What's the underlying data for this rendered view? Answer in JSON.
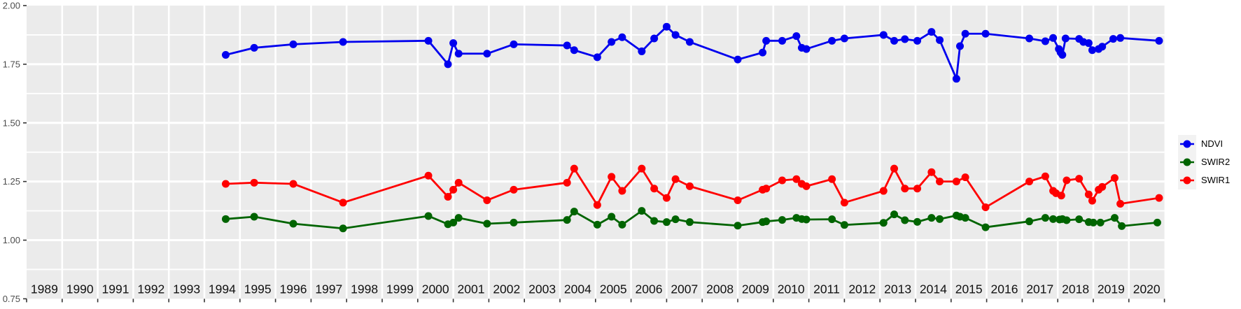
{
  "chart_data": {
    "type": "line",
    "title": "",
    "xlabel": "",
    "ylabel": "",
    "x_axis": {
      "tick_years": [
        1989,
        1990,
        1991,
        1992,
        1993,
        1994,
        1995,
        1996,
        1997,
        1998,
        1999,
        2000,
        2001,
        2002,
        2003,
        2004,
        2005,
        2006,
        2007,
        2008,
        2009,
        2010,
        2011,
        2012,
        2013,
        2014,
        2015,
        2016,
        2017,
        2018,
        2019,
        2020
      ],
      "range": [
        1989,
        2021
      ]
    },
    "y_axis": {
      "tick_labels": [
        "2.00",
        "1.75",
        "1.50",
        "1.25",
        "1.00",
        "0.75"
      ],
      "tick_values": [
        2.0,
        1.75,
        1.5,
        1.25,
        1.0,
        0.75
      ],
      "minor_gridlines": [
        0.875,
        1.125,
        1.375,
        1.625,
        1.875
      ],
      "range": [
        0.75,
        2.0
      ],
      "grid": true
    },
    "legend": {
      "position": "right",
      "entries": [
        {
          "label": "NDVI",
          "color": "#0000EE"
        },
        {
          "label": "SWIR2",
          "color": "#006400"
        },
        {
          "label": "SWIR1",
          "color": "#FF0000"
        }
      ]
    },
    "style": {
      "panel_bg": "#EBEBEB",
      "grid_color": "#FFFFFF",
      "axis_text_color": "#4D4D4D",
      "tick_color": "#333333",
      "year_label_color": "#111111",
      "legend_key_bg": "#F2F2F2",
      "plot_bg": "#FFFFFF"
    },
    "series": [
      {
        "name": "NDVI",
        "color": "#0000EE",
        "points": [
          [
            1994.6,
            1.79
          ],
          [
            1995.4,
            1.82
          ],
          [
            1996.5,
            1.835
          ],
          [
            1997.9,
            1.845
          ],
          [
            2000.3,
            1.85
          ],
          [
            2000.85,
            1.75
          ],
          [
            2001.0,
            1.84
          ],
          [
            2001.15,
            1.795
          ],
          [
            2001.95,
            1.795
          ],
          [
            2002.7,
            1.835
          ],
          [
            2004.2,
            1.83
          ],
          [
            2004.4,
            1.81
          ],
          [
            2005.05,
            1.78
          ],
          [
            2005.45,
            1.845
          ],
          [
            2005.75,
            1.865
          ],
          [
            2006.3,
            1.805
          ],
          [
            2006.65,
            1.86
          ],
          [
            2007.0,
            1.91
          ],
          [
            2007.25,
            1.875
          ],
          [
            2007.65,
            1.845
          ],
          [
            2009.0,
            1.77
          ],
          [
            2009.7,
            1.8
          ],
          [
            2009.8,
            1.85
          ],
          [
            2010.25,
            1.85
          ],
          [
            2010.65,
            1.87
          ],
          [
            2010.8,
            1.82
          ],
          [
            2010.93,
            1.815
          ],
          [
            2011.65,
            1.85
          ],
          [
            2012.0,
            1.86
          ],
          [
            2013.1,
            1.875
          ],
          [
            2013.4,
            1.85
          ],
          [
            2013.7,
            1.857
          ],
          [
            2014.05,
            1.85
          ],
          [
            2014.45,
            1.888
          ],
          [
            2014.68,
            1.853
          ],
          [
            2015.15,
            1.688
          ],
          [
            2015.25,
            1.827
          ],
          [
            2015.4,
            1.88
          ],
          [
            2015.97,
            1.88
          ],
          [
            2017.2,
            1.86
          ],
          [
            2017.65,
            1.848
          ],
          [
            2017.87,
            1.862
          ],
          [
            2018.03,
            1.815
          ],
          [
            2018.08,
            1.8
          ],
          [
            2018.13,
            1.79
          ],
          [
            2018.22,
            1.86
          ],
          [
            2018.6,
            1.858
          ],
          [
            2018.72,
            1.845
          ],
          [
            2018.87,
            1.84
          ],
          [
            2018.97,
            1.81
          ],
          [
            2019.15,
            1.815
          ],
          [
            2019.25,
            1.825
          ],
          [
            2019.56,
            1.858
          ],
          [
            2019.76,
            1.862
          ],
          [
            2020.85,
            1.85
          ]
        ]
      },
      {
        "name": "SWIR2",
        "color": "#006400",
        "points": [
          [
            1994.6,
            1.09
          ],
          [
            1995.4,
            1.1
          ],
          [
            1996.5,
            1.07
          ],
          [
            1997.9,
            1.05
          ],
          [
            2000.3,
            1.103
          ],
          [
            2000.85,
            1.068
          ],
          [
            2001.0,
            1.075
          ],
          [
            2001.15,
            1.095
          ],
          [
            2001.95,
            1.07
          ],
          [
            2002.7,
            1.075
          ],
          [
            2004.2,
            1.086
          ],
          [
            2004.4,
            1.122
          ],
          [
            2005.05,
            1.066
          ],
          [
            2005.45,
            1.1
          ],
          [
            2005.75,
            1.066
          ],
          [
            2006.3,
            1.125
          ],
          [
            2006.65,
            1.082
          ],
          [
            2007.0,
            1.077
          ],
          [
            2007.25,
            1.089
          ],
          [
            2007.65,
            1.077
          ],
          [
            2009.0,
            1.062
          ],
          [
            2009.7,
            1.077
          ],
          [
            2009.8,
            1.08
          ],
          [
            2010.25,
            1.086
          ],
          [
            2010.65,
            1.095
          ],
          [
            2010.8,
            1.09
          ],
          [
            2010.93,
            1.088
          ],
          [
            2011.65,
            1.089
          ],
          [
            2012.0,
            1.065
          ],
          [
            2013.1,
            1.074
          ],
          [
            2013.4,
            1.11
          ],
          [
            2013.7,
            1.085
          ],
          [
            2014.05,
            1.078
          ],
          [
            2014.45,
            1.095
          ],
          [
            2014.68,
            1.09
          ],
          [
            2015.15,
            1.105
          ],
          [
            2015.25,
            1.1
          ],
          [
            2015.4,
            1.095
          ],
          [
            2015.97,
            1.055
          ],
          [
            2017.2,
            1.08
          ],
          [
            2017.65,
            1.095
          ],
          [
            2017.87,
            1.09
          ],
          [
            2018.05,
            1.088
          ],
          [
            2018.13,
            1.09
          ],
          [
            2018.25,
            1.085
          ],
          [
            2018.6,
            1.089
          ],
          [
            2018.87,
            1.077
          ],
          [
            2019.0,
            1.075
          ],
          [
            2019.2,
            1.075
          ],
          [
            2019.6,
            1.095
          ],
          [
            2019.8,
            1.06
          ],
          [
            2020.8,
            1.075
          ]
        ]
      },
      {
        "name": "SWIR1",
        "color": "#FF0000",
        "points": [
          [
            1994.6,
            1.24
          ],
          [
            1995.4,
            1.245
          ],
          [
            1996.5,
            1.24
          ],
          [
            1997.9,
            1.16
          ],
          [
            2000.3,
            1.275
          ],
          [
            2000.85,
            1.185
          ],
          [
            2001.0,
            1.215
          ],
          [
            2001.15,
            1.245
          ],
          [
            2001.95,
            1.17
          ],
          [
            2002.7,
            1.215
          ],
          [
            2004.2,
            1.245
          ],
          [
            2004.4,
            1.305
          ],
          [
            2005.05,
            1.15
          ],
          [
            2005.45,
            1.27
          ],
          [
            2005.75,
            1.21
          ],
          [
            2006.3,
            1.305
          ],
          [
            2006.65,
            1.22
          ],
          [
            2007.0,
            1.18
          ],
          [
            2007.25,
            1.26
          ],
          [
            2007.65,
            1.23
          ],
          [
            2009.0,
            1.17
          ],
          [
            2009.7,
            1.215
          ],
          [
            2009.8,
            1.22
          ],
          [
            2010.25,
            1.255
          ],
          [
            2010.65,
            1.26
          ],
          [
            2010.8,
            1.24
          ],
          [
            2010.93,
            1.23
          ],
          [
            2011.65,
            1.26
          ],
          [
            2012.0,
            1.16
          ],
          [
            2013.1,
            1.21
          ],
          [
            2013.4,
            1.305
          ],
          [
            2013.7,
            1.22
          ],
          [
            2014.05,
            1.22
          ],
          [
            2014.45,
            1.29
          ],
          [
            2014.68,
            1.25
          ],
          [
            2015.15,
            1.25
          ],
          [
            2015.4,
            1.268
          ],
          [
            2015.97,
            1.14
          ],
          [
            2017.2,
            1.25
          ],
          [
            2017.65,
            1.272
          ],
          [
            2017.87,
            1.21
          ],
          [
            2017.95,
            1.2
          ],
          [
            2018.1,
            1.19
          ],
          [
            2018.25,
            1.255
          ],
          [
            2018.6,
            1.262
          ],
          [
            2018.87,
            1.195
          ],
          [
            2018.97,
            1.168
          ],
          [
            2019.15,
            1.215
          ],
          [
            2019.25,
            1.227
          ],
          [
            2019.6,
            1.265
          ],
          [
            2019.76,
            1.155
          ],
          [
            2020.85,
            1.18
          ]
        ]
      }
    ]
  }
}
